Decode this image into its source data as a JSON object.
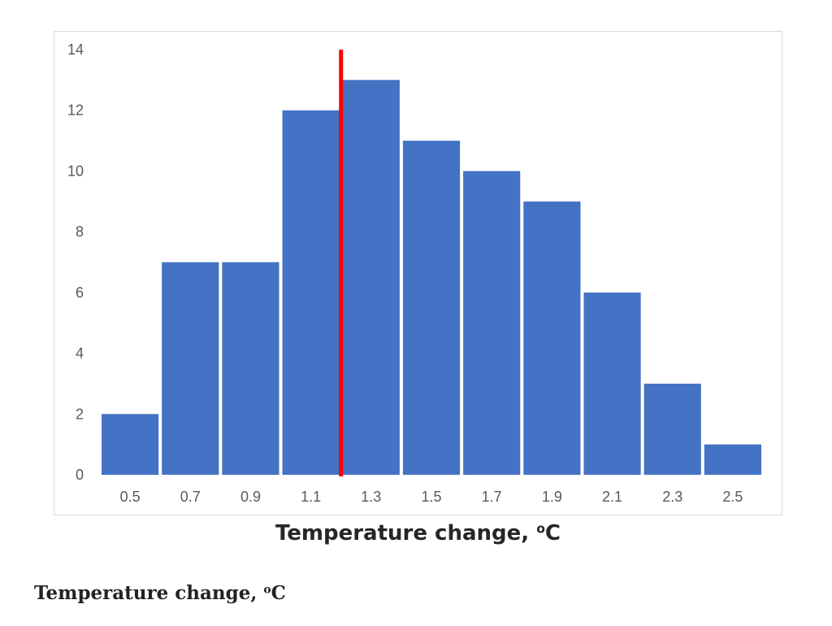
{
  "chart_data": {
    "type": "bar",
    "categories": [
      "0.5",
      "0.7",
      "0.9",
      "1.1",
      "1.3",
      "1.5",
      "1.7",
      "1.9",
      "2.1",
      "2.3",
      "2.5"
    ],
    "values": [
      2,
      7,
      7,
      12,
      13,
      11,
      10,
      9,
      6,
      3,
      1
    ],
    "ylim": [
      0,
      14
    ],
    "yticks": [
      "0",
      "2",
      "4",
      "6",
      "8",
      "10",
      "12",
      "14"
    ],
    "xlabel_main": "Temperature change, ",
    "xlabel_sup": "o",
    "xlabel_unit": "C",
    "grid": false,
    "legend": "none",
    "reference_line": {
      "x": 1.2,
      "color": "#ff0000"
    },
    "bar_color": "#4472c4"
  },
  "caption": {
    "main": "Temperature change, ",
    "sup": "o",
    "unit": "C"
  }
}
